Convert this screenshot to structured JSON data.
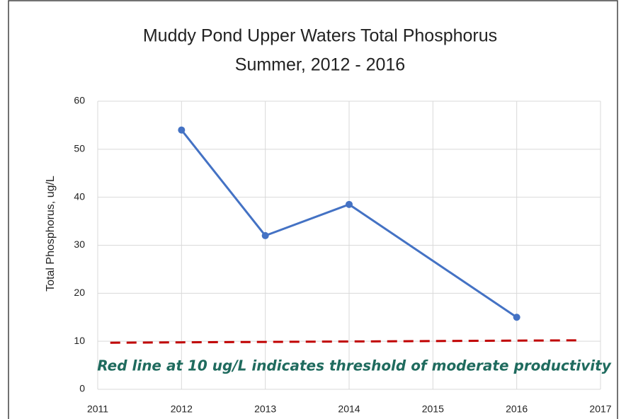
{
  "chart_data": {
    "type": "line",
    "title": "Muddy Pond Upper Waters Total Phosphorus",
    "subtitle": "Summer, 2012 - 2016",
    "y_label": "Total Phosphorus, ug/L",
    "annotation": "Red line at 10 ug/L indicates threshold of moderate productivity",
    "series": [
      {
        "color": "#4472c4",
        "x": [
          2012,
          2013,
          2014,
          2016
        ],
        "values": [
          54,
          32,
          38.5,
          15
        ],
        "markers": true
      },
      {
        "color": "#c00000",
        "x": [
          2011.15,
          2016.75
        ],
        "values": [
          9.7,
          10.2
        ],
        "dashed": true
      }
    ],
    "xlim": [
      2011,
      2017
    ],
    "xticks": [
      2011,
      2012,
      2013,
      2014,
      2015,
      2016,
      2017
    ],
    "ylim": [
      0,
      60
    ],
    "yticks": [
      0,
      10,
      20,
      30,
      40,
      50,
      60
    ],
    "grid": true
  }
}
